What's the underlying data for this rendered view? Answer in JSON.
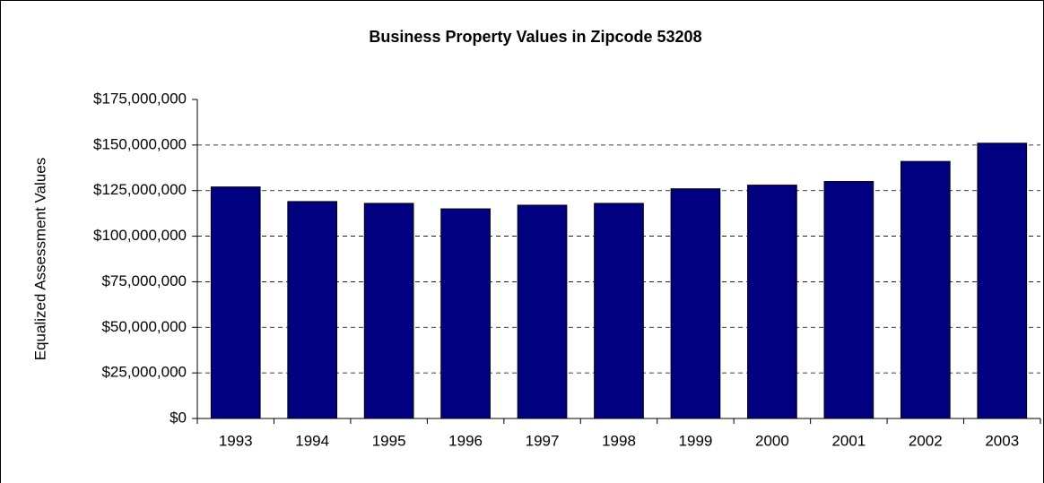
{
  "chart_data": {
    "type": "bar",
    "title": "Business Property Values in Zipcode 53208",
    "y_label": "Equalized Assessment Values",
    "categories": [
      "1993",
      "1994",
      "1995",
      "1996",
      "1997",
      "1998",
      "1999",
      "2000",
      "2001",
      "2002",
      "2003"
    ],
    "values": [
      127000000,
      119000000,
      118000000,
      115000000,
      117000000,
      118000000,
      126000000,
      128000000,
      130000000,
      141000000,
      151000000
    ],
    "color": "#000080",
    "ylim": [
      0,
      175000000
    ],
    "yticks": [
      {
        "value": 0,
        "label": "$0"
      },
      {
        "value": 25000000,
        "label": "$25,000,000"
      },
      {
        "value": 50000000,
        "label": "$50,000,000"
      },
      {
        "value": 75000000,
        "label": "$75,000,000"
      },
      {
        "value": 100000000,
        "label": "$100,000,000"
      },
      {
        "value": 125000000,
        "label": "$125,000,000"
      },
      {
        "value": 150000000,
        "label": "$150,000,000"
      },
      {
        "value": 175000000,
        "label": "$175,000,000"
      }
    ],
    "grid": true
  }
}
